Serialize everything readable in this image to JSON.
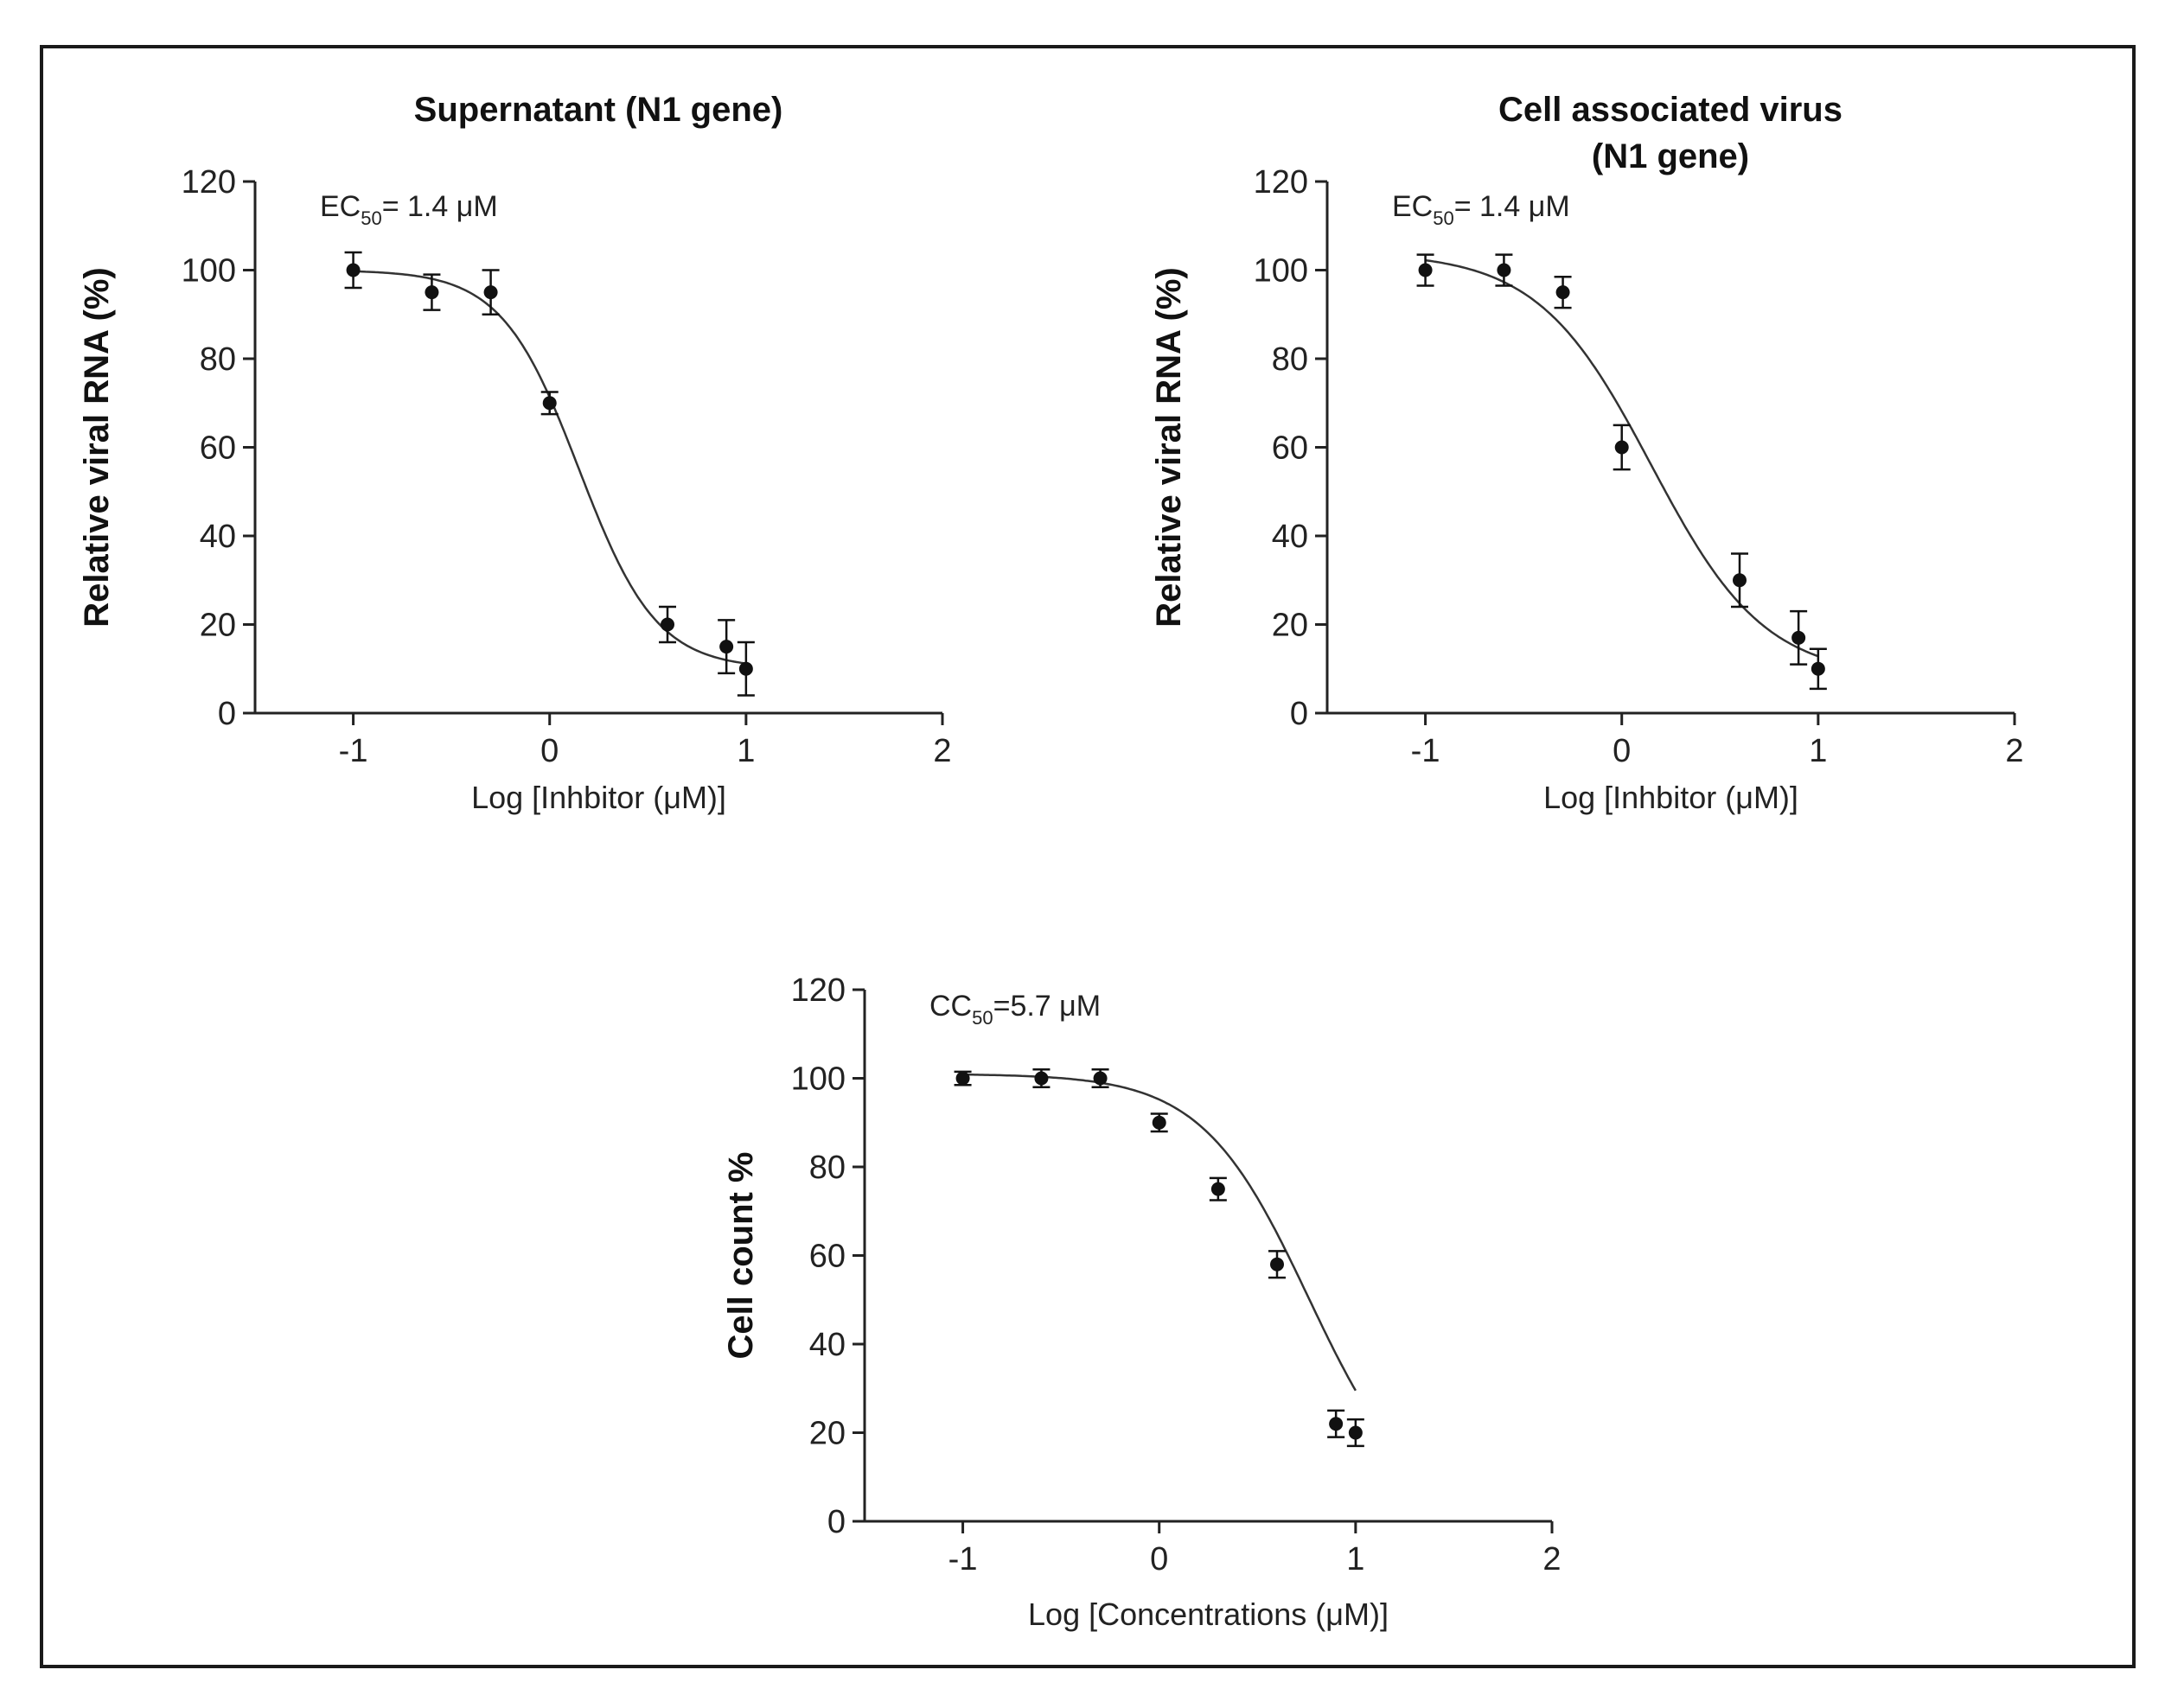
{
  "chart_data": [
    {
      "type": "scatter",
      "title": [
        "Supernatant (N1 gene)"
      ],
      "xlabel": "Log [Inhbitor (μM)]",
      "ylabel": "Relative viral RNA (%)",
      "annotation": {
        "prefix": "EC",
        "sub": "50",
        "suffix": "= 1.4 μM"
      },
      "xlim": [
        -1.5,
        2
      ],
      "ylim": [
        0,
        120
      ],
      "xticks": [
        -1,
        0,
        1,
        2
      ],
      "yticks": [
        0,
        20,
        40,
        60,
        80,
        100,
        120
      ],
      "x": [
        -1,
        -0.6,
        -0.3,
        0,
        0.6,
        0.9,
        1.0
      ],
      "y": [
        100,
        95,
        95,
        70,
        20,
        15,
        10
      ],
      "err": [
        4,
        4,
        5,
        2.5,
        4,
        6,
        6
      ],
      "fit": {
        "top": 100,
        "bottom": 10,
        "x50": 0.15,
        "hill": 2.2
      }
    },
    {
      "type": "scatter",
      "title": [
        "Cell associated virus",
        "(N1 gene)"
      ],
      "xlabel": "Log [Inhbitor (μM)]",
      "ylabel": "Relative viral RNA (%)",
      "annotation": {
        "prefix": "EC",
        "sub": "50",
        "suffix": "= 1.4 μM"
      },
      "xlim": [
        -1.5,
        2
      ],
      "ylim": [
        0,
        120
      ],
      "xticks": [
        -1,
        0,
        1,
        2
      ],
      "yticks": [
        0,
        20,
        40,
        60,
        80,
        100,
        120
      ],
      "x": [
        -1,
        -0.6,
        -0.3,
        0,
        0.6,
        0.9,
        1.0
      ],
      "y": [
        100,
        100,
        95,
        60,
        30,
        17,
        10
      ],
      "err": [
        3.5,
        3.5,
        3.5,
        5,
        6,
        6,
        4.5
      ],
      "fit": {
        "top": 104,
        "bottom": 8,
        "x50": 0.15,
        "hill": 1.5
      }
    },
    {
      "type": "scatter",
      "title": [],
      "xlabel": "Log [Concentrations (μM)]",
      "ylabel": "Cell count %",
      "annotation": {
        "prefix": "CC",
        "sub": "50",
        "suffix": "=5.7 μM"
      },
      "xlim": [
        -1.5,
        2
      ],
      "ylim": [
        0,
        120
      ],
      "xticks": [
        -1,
        0,
        1,
        2
      ],
      "yticks": [
        0,
        20,
        40,
        60,
        80,
        100,
        120
      ],
      "x": [
        -1,
        -0.6,
        -0.3,
        0,
        0.3,
        0.6,
        0.9,
        1.0
      ],
      "y": [
        100,
        100,
        100,
        90,
        75,
        58,
        22,
        20
      ],
      "err": [
        1.5,
        2,
        2,
        2,
        2.5,
        3,
        3,
        3
      ],
      "fit": {
        "top": 101,
        "bottom": 0,
        "x50": 0.76,
        "hill": 1.6
      }
    }
  ]
}
